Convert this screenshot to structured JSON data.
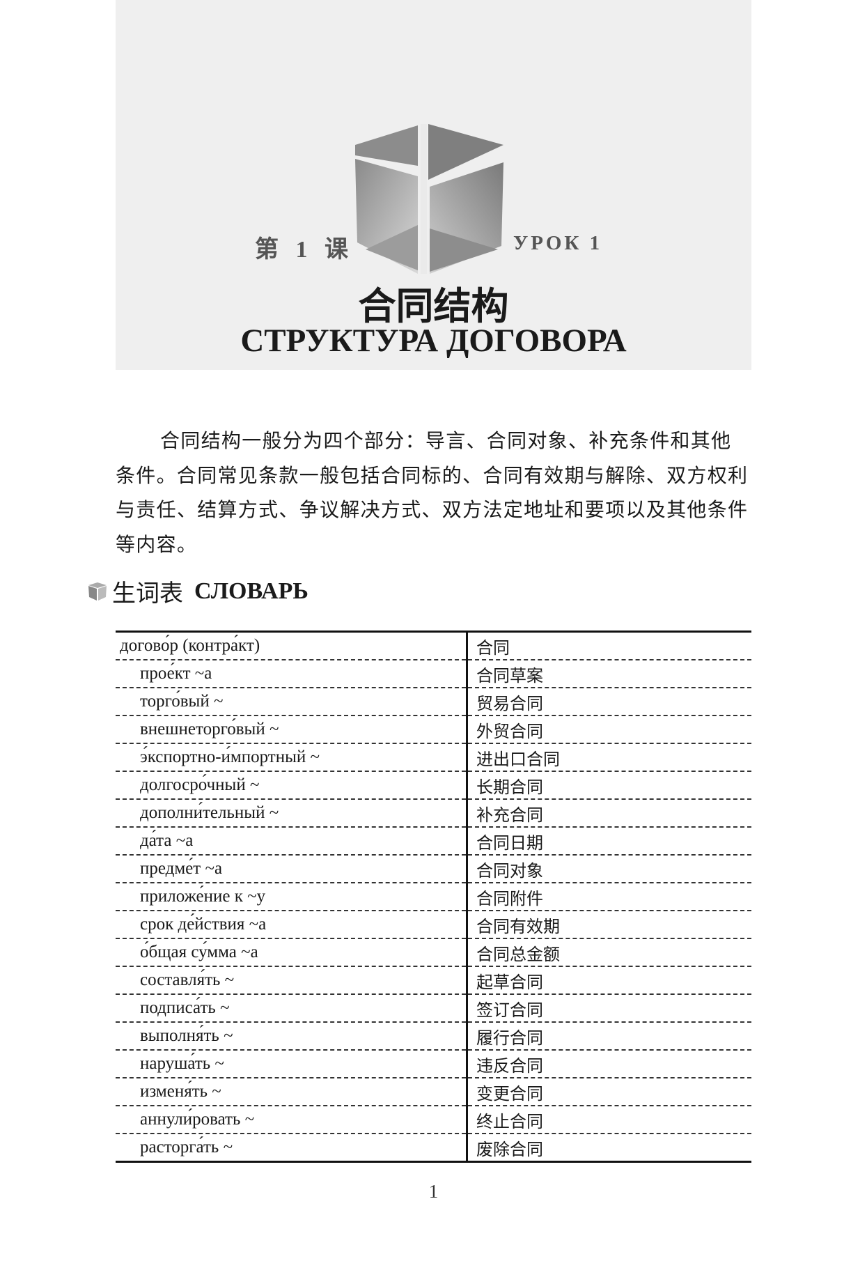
{
  "header": {
    "lesson_cn": "第 1 课",
    "lesson_ru": "УРОК 1",
    "title_cn": "合同结构",
    "title_ru": "СТРУКТУРА ДОГОВОРА",
    "banner_color": "#efefef"
  },
  "intro": "合同结构一般分为四个部分：导言、合同对象、补充条件和其他条件。合同常见条款一般包括合同标的、合同有效期与解除、双方权利与责任、结算方式、争议解决方式、双方法定地址和要项以及其他条件等内容。",
  "vocabulary": {
    "icon": "cube-icon",
    "heading_cn": "生词表",
    "heading_ru": "СЛОВАРЬ",
    "rows": [
      {
        "ru": "догово́р (контра́кт)",
        "cn": "合同",
        "sub": false
      },
      {
        "ru": "прое́кт ~а",
        "cn": "合同草案",
        "sub": true
      },
      {
        "ru": "торго́вый ~",
        "cn": "贸易合同",
        "sub": true
      },
      {
        "ru": "внешнеторго́вый ~",
        "cn": "外贸合同",
        "sub": true
      },
      {
        "ru": "э́кспортно-и́мпортный ~",
        "cn": "进出口合同",
        "sub": true
      },
      {
        "ru": "долгосро́чный ~",
        "cn": "长期合同",
        "sub": true
      },
      {
        "ru": "дополни́тельный ~",
        "cn": "补充合同",
        "sub": true
      },
      {
        "ru": "да́та ~а",
        "cn": "合同日期",
        "sub": true
      },
      {
        "ru": "предме́т ~а",
        "cn": "合同对象",
        "sub": true
      },
      {
        "ru": "приложе́ние к ~у",
        "cn": "合同附件",
        "sub": true
      },
      {
        "ru": "срок де́йствия ~а",
        "cn": "合同有效期",
        "sub": true
      },
      {
        "ru": "о́бщая су́мма ~а",
        "cn": "合同总金额",
        "sub": true
      },
      {
        "ru": "составля́ть ~",
        "cn": "起草合同",
        "sub": true
      },
      {
        "ru": "подписа́ть ~",
        "cn": "签订合同",
        "sub": true
      },
      {
        "ru": "выполня́ть ~",
        "cn": "履行合同",
        "sub": true
      },
      {
        "ru": "наруша́ть ~",
        "cn": "违反合同",
        "sub": true
      },
      {
        "ru": "изменя́ть ~",
        "cn": "变更合同",
        "sub": true
      },
      {
        "ru": "аннули́ровать ~",
        "cn": "终止合同",
        "sub": true
      },
      {
        "ru": "расторга́ть ~",
        "cn": "废除合同",
        "sub": true
      }
    ]
  },
  "page_number": "1"
}
